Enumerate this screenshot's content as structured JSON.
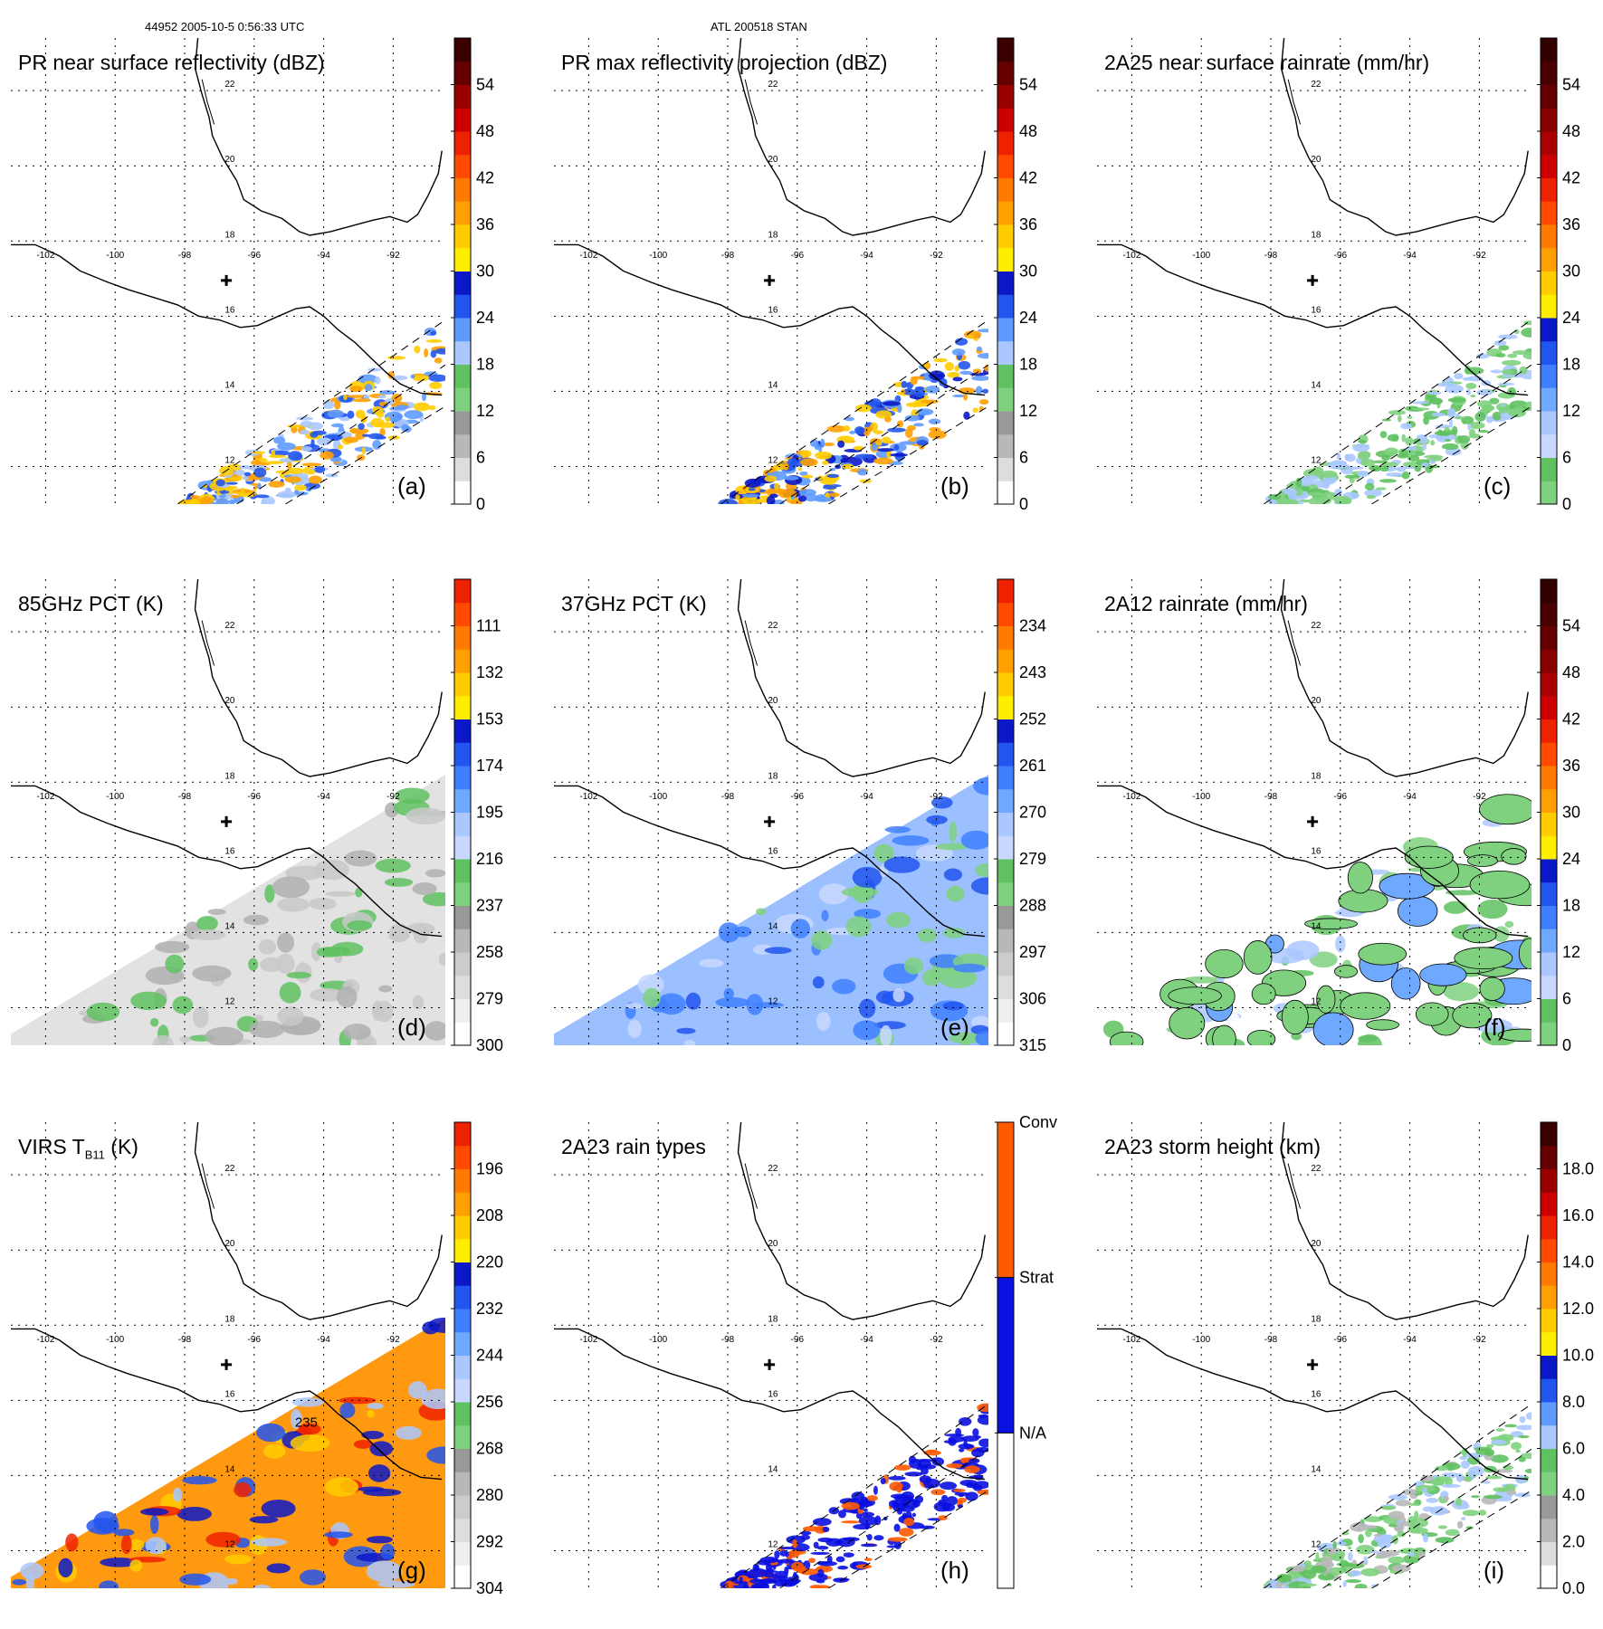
{
  "header": {
    "left": "44952 2005-10-5 0:56:33 UTC",
    "center": "ATL 200518 STAN"
  },
  "map": {
    "lon_labels": [
      "-102",
      "-100",
      "-98",
      "-96",
      "-94",
      "-92"
    ],
    "lat_labels": [
      "22",
      "20",
      "18",
      "16",
      "14",
      "12"
    ]
  },
  "panels": [
    {
      "id": "a",
      "title": "PR near surface reflectivity (dBZ)",
      "label": "(a)",
      "colorbar": [
        "0",
        "6",
        "12",
        "18",
        "24",
        "30",
        "36",
        "42",
        "48",
        "54"
      ],
      "swath": "pr",
      "colors": [
        "#ffffff",
        "#dddddd",
        "#b8b8b8",
        "#999999",
        "#7fd17f",
        "#5fc15f",
        "#aac8ff",
        "#5f9bff",
        "#2255ee",
        "#0a18c8",
        "#ffee00",
        "#ffcc00",
        "#ffa000",
        "#ff7a00",
        "#ff4a00",
        "#ee2200",
        "#cc0000",
        "#990000",
        "#660000",
        "#3a0000"
      ]
    },
    {
      "id": "b",
      "title": "PR max reflectivity projection (dBZ)",
      "label": "(b)",
      "colorbar": [
        "0",
        "6",
        "12",
        "18",
        "24",
        "30",
        "36",
        "42",
        "48",
        "54"
      ],
      "swath": "pr",
      "colors": [
        "#ffffff",
        "#dddddd",
        "#b8b8b8",
        "#999999",
        "#7fd17f",
        "#5fc15f",
        "#aac8ff",
        "#5f9bff",
        "#2255ee",
        "#0a18c8",
        "#ffee00",
        "#ffcc00",
        "#ffa000",
        "#ff7a00",
        "#ff4a00",
        "#ee2200",
        "#cc0000",
        "#990000",
        "#660000",
        "#3a0000"
      ]
    },
    {
      "id": "c",
      "title": "2A25 near surface rainrate (mm/hr)",
      "label": "(c)",
      "colorbar": [
        "0",
        "6",
        "12",
        "18",
        "24",
        "30",
        "36",
        "42",
        "48",
        "54"
      ],
      "swath": "pr",
      "colors": [
        "#7fd17f",
        "#5fc15f",
        "#c8d8ff",
        "#aac8ff",
        "#6fa8ff",
        "#3f7fff",
        "#2255ee",
        "#0a18c8",
        "#ffee00",
        "#ffcc00",
        "#ffa000",
        "#ff7a00",
        "#ff4a00",
        "#ee2200",
        "#cc0000",
        "#aa0000",
        "#880000",
        "#660000",
        "#4a0000",
        "#330000"
      ]
    },
    {
      "id": "d",
      "title": "85GHz PCT (K)",
      "label": "(d)",
      "colorbar": [
        "300",
        "279",
        "258",
        "237",
        "216",
        "195",
        "174",
        "153",
        "132",
        "111"
      ],
      "swath": "tmi",
      "colors": [
        "#ffffff",
        "#eeeeee",
        "#dddddd",
        "#cccccc",
        "#b8b8b8",
        "#999999",
        "#7fd17f",
        "#5fc15f",
        "#c8d8ff",
        "#aac8ff",
        "#6fa8ff",
        "#3f7fff",
        "#2255ee",
        "#0a18c8",
        "#ffee00",
        "#ffcc00",
        "#ffa000",
        "#ff7a00",
        "#ff4a00",
        "#ee2200"
      ]
    },
    {
      "id": "e",
      "title": "37GHz PCT (K)",
      "label": "(e)",
      "colorbar": [
        "315",
        "306",
        "297",
        "288",
        "279",
        "270",
        "261",
        "252",
        "243",
        "234"
      ],
      "swath": "tmi",
      "colors": [
        "#ffffff",
        "#eeeeee",
        "#dddddd",
        "#cccccc",
        "#b8b8b8",
        "#999999",
        "#7fd17f",
        "#5fc15f",
        "#c8d8ff",
        "#aac8ff",
        "#6fa8ff",
        "#3f7fff",
        "#2255ee",
        "#0a18c8",
        "#ffee00",
        "#ffcc00",
        "#ffa000",
        "#ff7a00",
        "#ff4a00",
        "#ee2200"
      ]
    },
    {
      "id": "f",
      "title": "2A12 rainrate (mm/hr)",
      "label": "(f)",
      "colorbar": [
        "0",
        "6",
        "12",
        "18",
        "24",
        "30",
        "36",
        "42",
        "48",
        "54"
      ],
      "swath": "tmi",
      "colors": [
        "#7fd17f",
        "#5fc15f",
        "#c8d8ff",
        "#aac8ff",
        "#6fa8ff",
        "#3f7fff",
        "#2255ee",
        "#0a18c8",
        "#ffee00",
        "#ffcc00",
        "#ffa000",
        "#ff7a00",
        "#ff4a00",
        "#ee2200",
        "#cc0000",
        "#aa0000",
        "#880000",
        "#660000",
        "#4a0000",
        "#330000"
      ]
    },
    {
      "id": "g",
      "title": "VIRS T",
      "title_sub": "B11",
      "title_tail": " (K)",
      "label": "(g)",
      "colorbar": [
        "304",
        "292",
        "280",
        "268",
        "256",
        "244",
        "232",
        "220",
        "208",
        "196"
      ],
      "swath": "virs",
      "contour_label": "235",
      "colors": [
        "#ffffff",
        "#eeeeee",
        "#dddddd",
        "#cccccc",
        "#b8b8b8",
        "#999999",
        "#7fd17f",
        "#5fc15f",
        "#c8d8ff",
        "#aac8ff",
        "#6fa8ff",
        "#3f7fff",
        "#2255ee",
        "#0a18c8",
        "#ffee00",
        "#ffcc00",
        "#ffa000",
        "#ff7a00",
        "#ff4a00",
        "#ee2200"
      ]
    },
    {
      "id": "h",
      "title": "2A23 rain types",
      "label": "(h)",
      "colorbar": [
        "N/A",
        "Strat",
        "Conv"
      ],
      "swath": "pr",
      "categorical": true,
      "colors": [
        "#ffffff",
        "#0a10e0",
        "#ff5a00"
      ]
    },
    {
      "id": "i",
      "title": "2A23 storm height (km)",
      "label": "(i)",
      "colorbar": [
        "0.0",
        "2.0",
        "4.0",
        "6.0",
        "8.0",
        "10.0",
        "12.0",
        "14.0",
        "16.0",
        "18.0"
      ],
      "swath": "pr",
      "colors": [
        "#ffffff",
        "#dddddd",
        "#b8b8b8",
        "#999999",
        "#7fd17f",
        "#5fc15f",
        "#aac8ff",
        "#5f9bff",
        "#2255ee",
        "#0a18c8",
        "#ffee00",
        "#ffcc00",
        "#ffa000",
        "#ff7a00",
        "#ff4a00",
        "#ee2200",
        "#cc0000",
        "#990000",
        "#660000",
        "#3a0000"
      ]
    }
  ]
}
